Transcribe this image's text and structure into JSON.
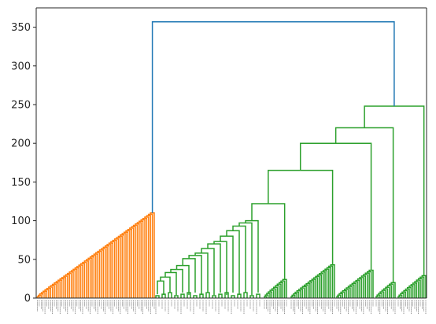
{
  "chart_data": {
    "type": "dendrogram",
    "title": "",
    "xlabel": "",
    "ylabel": "",
    "ylim": [
      0,
      375
    ],
    "yticks": [
      0,
      50,
      100,
      150,
      200,
      250,
      300,
      350
    ],
    "ytick_labels": [
      "0",
      "50",
      "100",
      "150",
      "200",
      "250",
      "300",
      "350"
    ],
    "grid": false,
    "leaf_labels_legible": false,
    "colors": {
      "root_link": "#1f77b4",
      "cluster_left": "#ff7f0e",
      "cluster_right": "#2ca02c",
      "axes": "#262626",
      "leaf_labels": "#444444"
    },
    "root": {
      "height": 357
    },
    "clusters": [
      {
        "name": "left-cluster",
        "color": "#ff7f0e",
        "top_height": 110,
        "shape": "staircase",
        "leaf_count": 62
      },
      {
        "name": "right-cluster",
        "color": "#2ca02c",
        "top_height": 248,
        "merges": [
          {
            "height": 248,
            "children": [
              "merge_220",
              "sub_g"
            ]
          },
          {
            "height": 220,
            "children": [
              "merge_200",
              "sub_f"
            ]
          },
          {
            "height": 200,
            "children": [
              "merge_165",
              "sub_e"
            ]
          },
          {
            "height": 165,
            "children": [
              "merge_122",
              "sub_d"
            ]
          },
          {
            "height": 122,
            "children": [
              "chain",
              "sub_c"
            ]
          }
        ],
        "chain_heights": [
          100,
          97,
          93,
          87,
          80,
          73,
          70,
          64,
          58,
          55,
          51,
          42,
          37,
          33,
          27,
          22
        ],
        "subclusters": [
          {
            "name": "sub_c",
            "top_height": 24,
            "shape": "staircase"
          },
          {
            "name": "sub_d",
            "top_height": 43,
            "shape": "staircase"
          },
          {
            "name": "sub_e",
            "top_height": 36,
            "shape": "staircase"
          },
          {
            "name": "sub_f",
            "top_height": 20,
            "shape": "staircase"
          },
          {
            "name": "sub_g",
            "top_height": 29,
            "shape": "staircase"
          }
        ]
      }
    ]
  }
}
